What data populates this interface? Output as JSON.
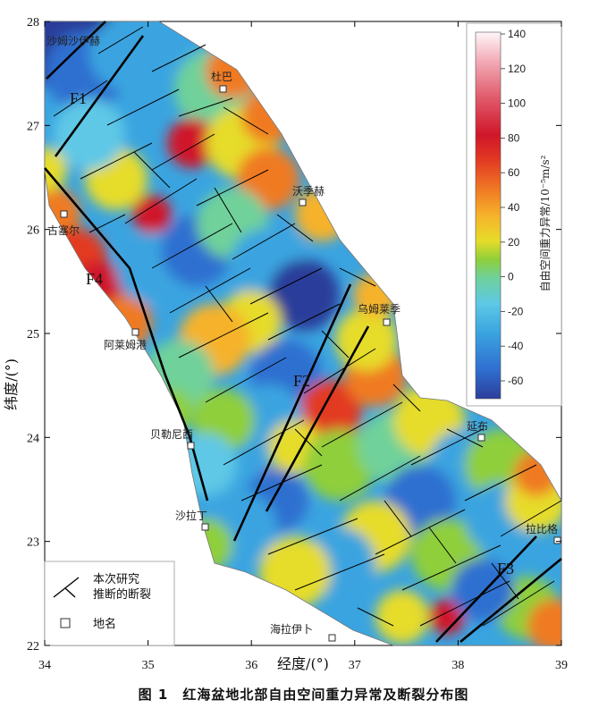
{
  "caption": "图 1　红海盆地北部自由空间重力异常及断裂分布图",
  "axes": {
    "xlabel": "经度/(°)",
    "ylabel": "纬度/(°)",
    "x_ticks": [
      "34",
      "35",
      "36",
      "37",
      "38",
      "39"
    ],
    "y_ticks": [
      "28",
      "27",
      "26",
      "25",
      "24",
      "23",
      "22"
    ]
  },
  "colorbar": {
    "unit_label": "自由空间重力异常/10⁻⁵m/s²",
    "ticks": [
      "140",
      "120",
      "100",
      "80",
      "60",
      "40",
      "20",
      "0",
      "-20",
      "-40",
      "-60"
    ],
    "colors": [
      "#2c3e9a",
      "#2f6fd0",
      "#3aa4e0",
      "#5ec8e6",
      "#6fd19a",
      "#8fcf3a",
      "#e6dc2a",
      "#f6b22a",
      "#f07a24",
      "#e23a22",
      "#d0162a",
      "#e05a6a",
      "#f2aab6",
      "#fff6f8"
    ]
  },
  "faults": [
    {
      "id": "f1",
      "label": "F1"
    },
    {
      "id": "f2",
      "label": "F2"
    },
    {
      "id": "f3",
      "label": "F3"
    },
    {
      "id": "f4",
      "label": "F4"
    }
  ],
  "places": [
    {
      "id": "safaga",
      "name": "沙姆沙伊赫"
    },
    {
      "id": "duba",
      "name": "杜巴"
    },
    {
      "id": "wajh",
      "name": "沃季赫"
    },
    {
      "id": "quseir",
      "name": "古塞尔"
    },
    {
      "id": "umm",
      "name": "乌姆莱季"
    },
    {
      "id": "alam",
      "name": "阿莱姆港"
    },
    {
      "id": "berenice",
      "name": "贝勒尼西"
    },
    {
      "id": "yanbu",
      "name": "延布"
    },
    {
      "id": "shalatin",
      "name": "沙拉丁"
    },
    {
      "id": "rabigh",
      "name": "拉比格"
    },
    {
      "id": "halaib",
      "name": "海拉伊卜"
    }
  ],
  "legend": {
    "fault_label_line1": "本次研究",
    "fault_label_line2": "推断的断裂",
    "place_label": "地名"
  },
  "colors": {
    "fault_line": "#000000",
    "coast": "#555555",
    "frame": "#000000"
  }
}
